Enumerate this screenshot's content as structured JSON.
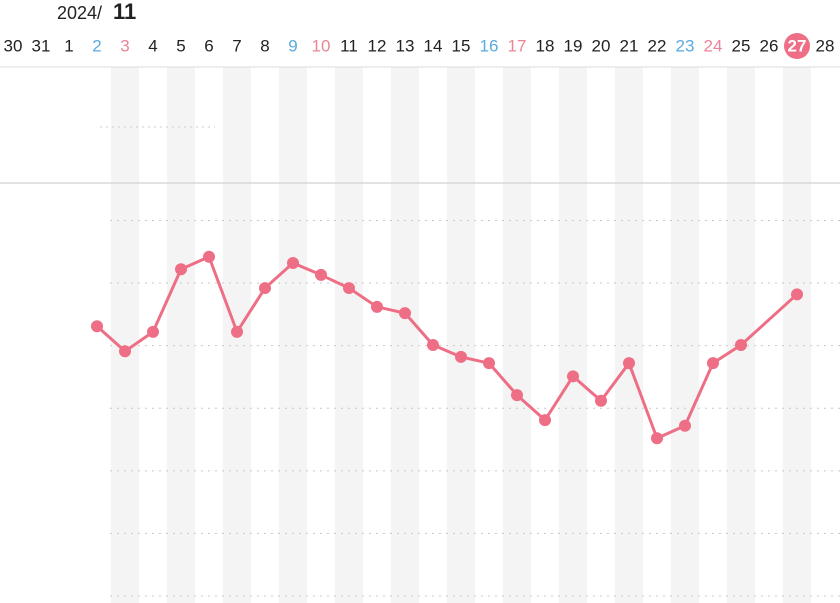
{
  "header": {
    "year": "2024/",
    "month": "11"
  },
  "chart_data": {
    "type": "line",
    "categories": [
      "30",
      "31",
      "1",
      "2",
      "3",
      "4",
      "5",
      "6",
      "7",
      "8",
      "9",
      "10",
      "11",
      "12",
      "13",
      "14",
      "15",
      "16",
      "17",
      "18",
      "19",
      "20",
      "21",
      "22",
      "23",
      "24",
      "25",
      "26",
      "27",
      "28"
    ],
    "category_colors": [
      "#222",
      "#222",
      "#222",
      "#5aaae0",
      "#ec8497",
      "#222",
      "#222",
      "#222",
      "#222",
      "#222",
      "#5aaae0",
      "#ec8497",
      "#222",
      "#222",
      "#222",
      "#222",
      "#222",
      "#5aaae0",
      "#ec8497",
      "#222",
      "#222",
      "#222",
      "#222",
      "#222",
      "#5aaae0",
      "#ec8497",
      "#222",
      "#222",
      "#222",
      "#222"
    ],
    "today": "27",
    "today_color": "#ee6e85",
    "series": [
      {
        "color": "#ee6e85",
        "x": [
          "2",
          "3",
          "4",
          "5",
          "6",
          "7",
          "8",
          "9",
          "10",
          "11",
          "12",
          "13",
          "14",
          "15",
          "16",
          "17",
          "18",
          "19",
          "20",
          "21",
          "22",
          "23",
          "24",
          "25",
          "27"
        ],
        "values": [
          4.31,
          3.91,
          4.22,
          5.22,
          5.42,
          4.22,
          4.92,
          5.32,
          5.13,
          4.92,
          4.62,
          4.52,
          4.01,
          3.82,
          3.72,
          3.21,
          2.81,
          3.51,
          3.12,
          3.72,
          2.52,
          2.72,
          3.72,
          4.01,
          4.82
        ]
      }
    ],
    "ylim": [
      0,
      8.5
    ],
    "yticks": [
      0,
      1,
      2,
      3,
      4,
      5,
      6
    ],
    "grid": true
  }
}
